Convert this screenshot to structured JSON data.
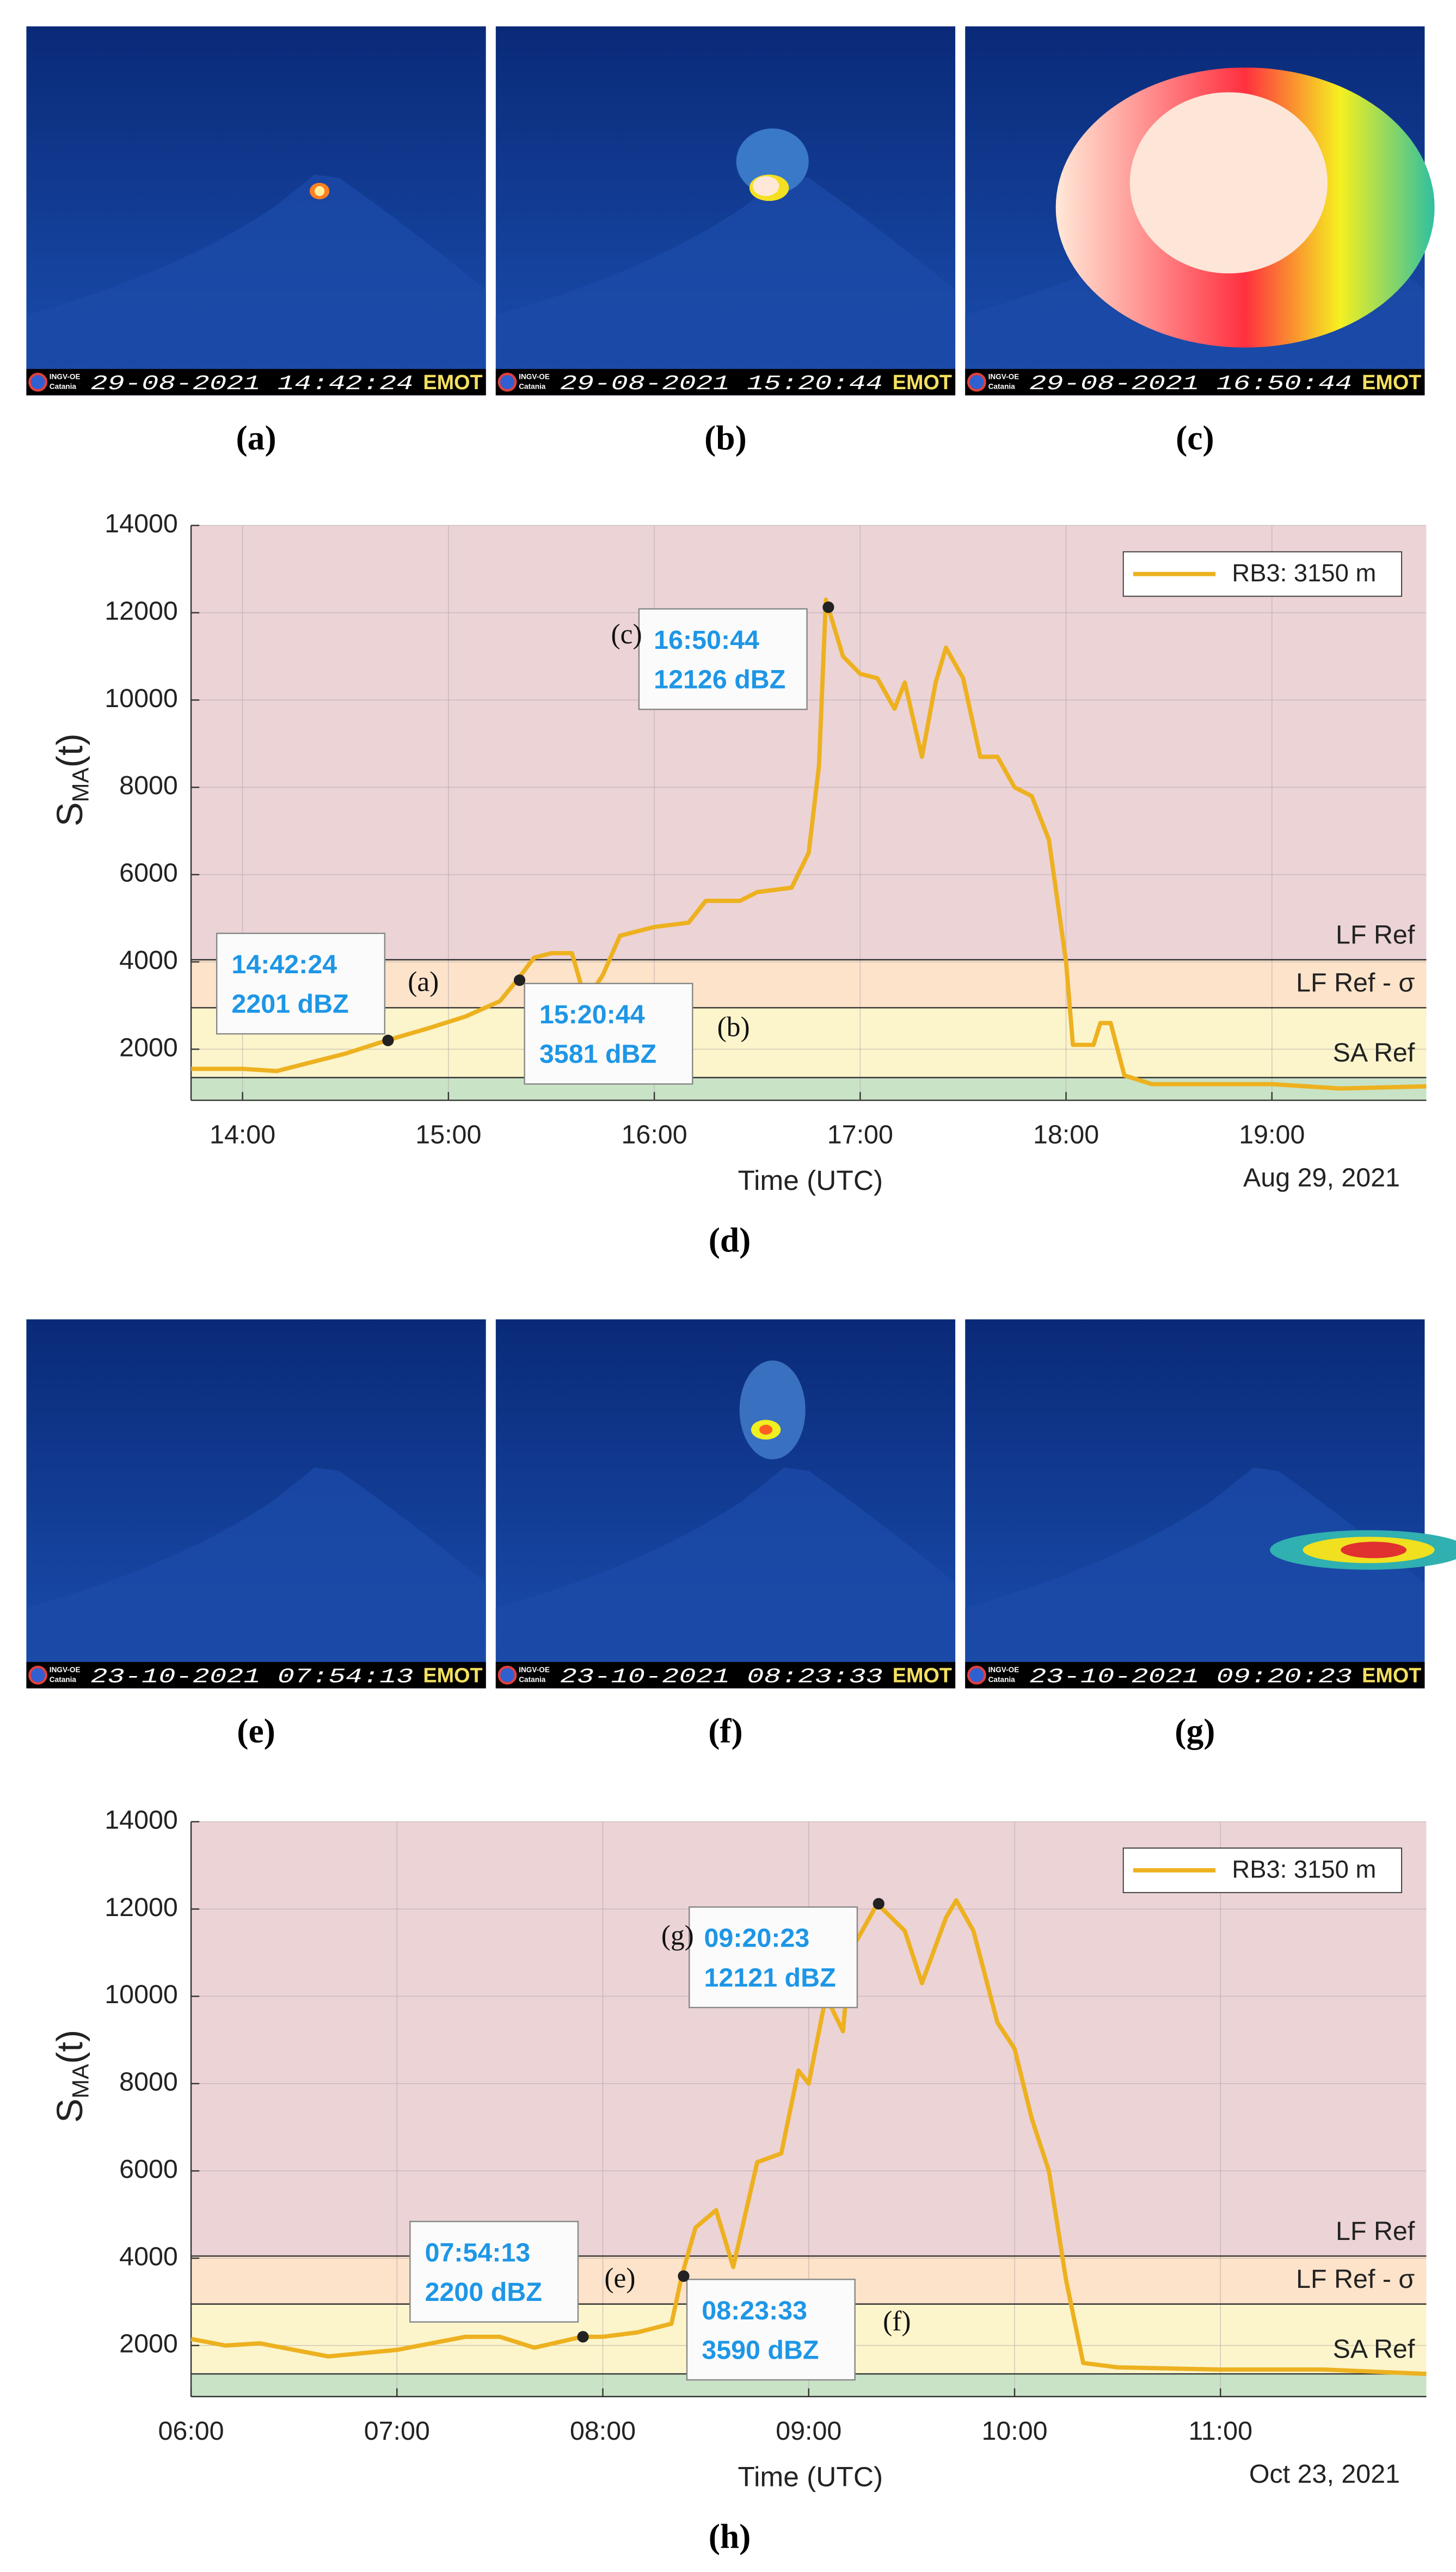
{
  "panels": [
    {
      "timestamp": "29-08-2021 14:42:24",
      "caption": "(a)"
    },
    {
      "timestamp": "29-08-2021 15:20:44",
      "caption": "(b)"
    },
    {
      "timestamp": "29-08-2021 16:50:44",
      "caption": "(c)"
    },
    {
      "timestamp": "23-10-2021 07:54:13",
      "caption": "(e)"
    },
    {
      "timestamp": "23-10-2021 08:23:33",
      "caption": "(f)"
    },
    {
      "timestamp": "23-10-2021 09:20:23",
      "caption": "(g)"
    }
  ],
  "logo_text": [
    "INGV-OE",
    "Catania"
  ],
  "brand": "EMOT",
  "chart_data": [
    {
      "type": "line",
      "caption": "(d)",
      "ylabel": {
        "main": "S",
        "sub": "MA",
        "suffix": "(t)"
      },
      "xlabel": "Time (UTC)",
      "date_label": "Aug 29, 2021",
      "xlim": [
        "13:45",
        "19:45"
      ],
      "xticks": [
        "14:00",
        "15:00",
        "16:00",
        "17:00",
        "18:00",
        "19:00"
      ],
      "ylim": [
        830,
        14000
      ],
      "yticks": [
        2000,
        4000,
        6000,
        8000,
        10000,
        12000,
        14000
      ],
      "grid": true,
      "legend": "upper right",
      "band_colors": [
        "#c9e3c6",
        "#fcf5cb",
        "#fce3c9",
        "#ebd3d6"
      ],
      "ref_lines": [
        {
          "label": "SA Ref",
          "value": 1350
        },
        {
          "label": "LF Ref - σ",
          "value": 2950
        },
        {
          "label": "LF Ref",
          "value": 4050
        }
      ],
      "x": [
        "13:45",
        "14:00",
        "14:10",
        "14:20",
        "14:30",
        "14:42",
        "14:55",
        "15:05",
        "15:15",
        "15:20",
        "15:25",
        "15:30",
        "15:36",
        "15:40",
        "15:45",
        "15:50",
        "16:00",
        "16:10",
        "16:15",
        "16:25",
        "16:30",
        "16:40",
        "16:45",
        "16:48",
        "16:50",
        "16:55",
        "17:00",
        "17:05",
        "17:10",
        "17:13",
        "17:18",
        "17:22",
        "17:25",
        "17:30",
        "17:35",
        "17:40",
        "17:45",
        "17:50",
        "17:55",
        "18:00",
        "18:02",
        "18:08",
        "18:10",
        "18:13",
        "18:17",
        "18:25",
        "19:00",
        "19:20",
        "19:45"
      ],
      "series": [
        {
          "name": "RB3: 3150 m",
          "color": "#edb120",
          "values": [
            1550,
            1550,
            1500,
            1700,
            1900,
            2201,
            2500,
            2750,
            3100,
            3581,
            4100,
            4200,
            4200,
            3100,
            3700,
            4600,
            4800,
            4900,
            5400,
            5400,
            5600,
            5700,
            6500,
            8500,
            12300,
            11000,
            10600,
            10500,
            9800,
            10400,
            8700,
            10400,
            11200,
            10500,
            8700,
            8700,
            8000,
            7800,
            6800,
            4000,
            2100,
            2100,
            2600,
            2600,
            1400,
            1200,
            1200,
            1100,
            1150
          ]
        }
      ],
      "annotations": [
        {
          "x": "14:42:24",
          "y": 2201,
          "y_label": "2201 dBZ",
          "tag": "(a)"
        },
        {
          "x": "15:20:44",
          "y": 3581,
          "y_label": "3581 dBZ",
          "tag": "(b)"
        },
        {
          "x": "16:50:44",
          "y": 12126,
          "y_label": "12126 dBZ",
          "tag": "(c)"
        }
      ]
    },
    {
      "type": "line",
      "caption": "(h)",
      "ylabel": {
        "main": "S",
        "sub": "MA",
        "suffix": "(t)"
      },
      "xlabel": "Time (UTC)",
      "date_label": "Oct 23, 2021",
      "xlim": [
        "06:00",
        "12:00"
      ],
      "xticks": [
        "06:00",
        "07:00",
        "08:00",
        "09:00",
        "10:00",
        "11:00"
      ],
      "ylim": [
        830,
        14000
      ],
      "yticks": [
        2000,
        4000,
        6000,
        8000,
        10000,
        12000,
        14000
      ],
      "grid": true,
      "legend": "upper right",
      "band_colors": [
        "#c9e3c6",
        "#fcf5cb",
        "#fce3c9",
        "#ebd3d6"
      ],
      "ref_lines": [
        {
          "label": "SA Ref",
          "value": 1350
        },
        {
          "label": "LF Ref - σ",
          "value": 2950
        },
        {
          "label": "LF Ref",
          "value": 4050
        }
      ],
      "x": [
        "06:00",
        "06:10",
        "06:20",
        "06:40",
        "07:00",
        "07:20",
        "07:30",
        "07:40",
        "07:54",
        "08:00",
        "08:10",
        "08:20",
        "08:23",
        "08:27",
        "08:33",
        "08:38",
        "08:45",
        "08:52",
        "08:57",
        "09:00",
        "09:05",
        "09:10",
        "09:12",
        "09:20",
        "09:28",
        "09:33",
        "09:40",
        "09:43",
        "09:48",
        "09:55",
        "10:00",
        "10:05",
        "10:10",
        "10:15",
        "10:20",
        "10:30",
        "11:00",
        "11:30",
        "12:00"
      ],
      "series": [
        {
          "name": "RB3: 3150 m",
          "color": "#edb120",
          "values": [
            2150,
            2000,
            2050,
            1750,
            1900,
            2200,
            2200,
            1950,
            2200,
            2200,
            2300,
            2500,
            3590,
            4700,
            5100,
            3800,
            6200,
            6400,
            8300,
            8000,
            10000,
            9200,
            11000,
            12121,
            11500,
            10300,
            11800,
            12200,
            11500,
            9400,
            8800,
            7200,
            6000,
            3500,
            1600,
            1500,
            1450,
            1450,
            1350
          ]
        }
      ],
      "annotations": [
        {
          "x": "07:54:13",
          "y": 2200,
          "y_label": "2200 dBZ",
          "tag": "(e)"
        },
        {
          "x": "08:23:33",
          "y": 3590,
          "y_label": "3590 dBZ",
          "tag": "(f)"
        },
        {
          "x": "09:20:23",
          "y": 12121,
          "y_label": "12121 dBZ",
          "tag": "(g)"
        }
      ]
    }
  ]
}
